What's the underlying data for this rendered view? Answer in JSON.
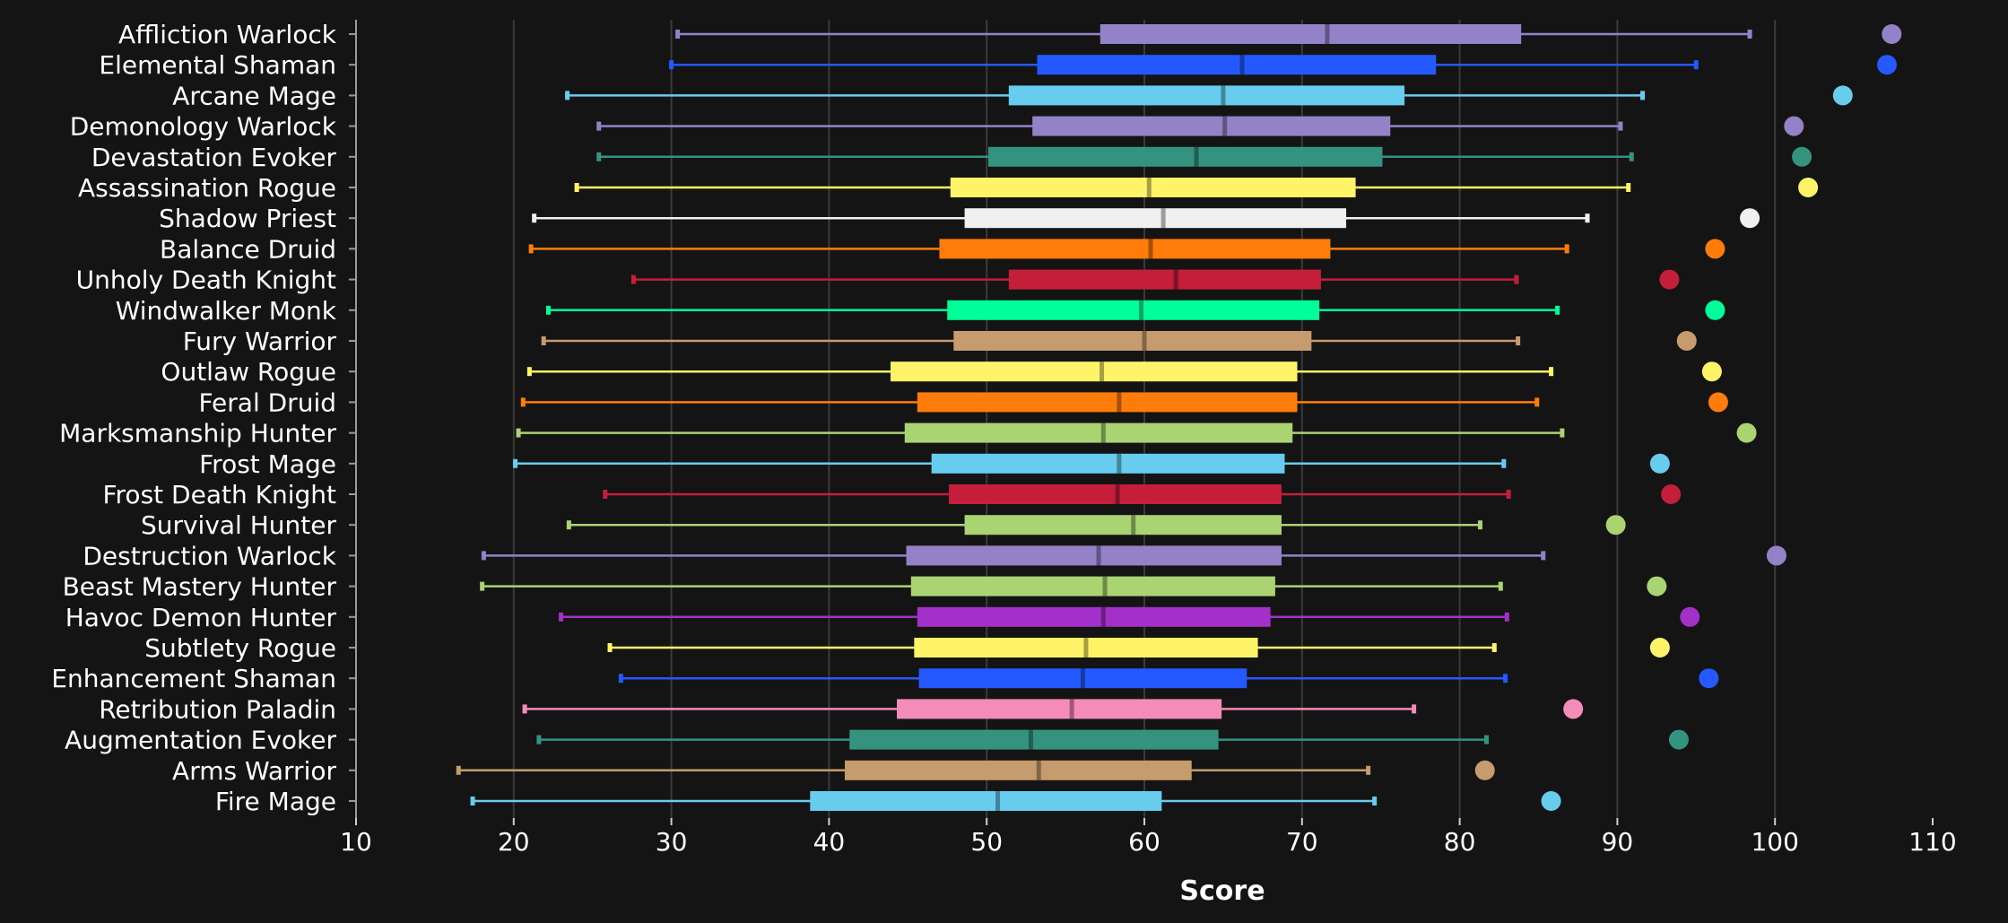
{
  "chart_data": {
    "type": "boxplot",
    "xlabel": "Score",
    "xlim": [
      10,
      110
    ],
    "xticks": [
      10,
      20,
      30,
      40,
      50,
      60,
      70,
      80,
      90,
      100,
      110
    ],
    "xtick_labels": [
      "10",
      "20",
      "30",
      "40",
      "50",
      "60",
      "70",
      "80",
      "90",
      "100",
      "110"
    ],
    "grid": "vertical",
    "background": "#141414",
    "categories": [
      {
        "label": "Affliction Warlock",
        "color": "#9482c9",
        "min": 30.4,
        "q1": 57.2,
        "median": 71.6,
        "q3": 83.9,
        "max": 98.4,
        "point": 107.4
      },
      {
        "label": "Elemental Shaman",
        "color": "#2459ff",
        "min": 30.0,
        "q1": 53.2,
        "median": 66.2,
        "q3": 78.5,
        "max": 95.0,
        "point": 107.1
      },
      {
        "label": "Arcane Mage",
        "color": "#68ccef",
        "min": 23.4,
        "q1": 51.4,
        "median": 65.0,
        "q3": 76.5,
        "max": 91.6,
        "point": 104.3
      },
      {
        "label": "Demonology Warlock",
        "color": "#9482c9",
        "min": 25.4,
        "q1": 52.9,
        "median": 65.1,
        "q3": 75.6,
        "max": 90.2,
        "point": 101.2
      },
      {
        "label": "Devastation Evoker",
        "color": "#33937f",
        "min": 25.4,
        "q1": 50.1,
        "median": 63.3,
        "q3": 75.1,
        "max": 90.9,
        "point": 101.7
      },
      {
        "label": "Assassination Rogue",
        "color": "#fff468",
        "min": 24.0,
        "q1": 47.7,
        "median": 60.3,
        "q3": 73.4,
        "max": 90.7,
        "point": 102.1
      },
      {
        "label": "Shadow Priest",
        "color": "#f0f0f0",
        "min": 21.3,
        "q1": 48.6,
        "median": 61.2,
        "q3": 72.8,
        "max": 88.1,
        "point": 98.4
      },
      {
        "label": "Balance Druid",
        "color": "#ff7c0a",
        "min": 21.1,
        "q1": 47.0,
        "median": 60.4,
        "q3": 71.8,
        "max": 86.8,
        "point": 96.2
      },
      {
        "label": "Unholy Death Knight",
        "color": "#c41e3a",
        "min": 27.6,
        "q1": 51.4,
        "median": 62.0,
        "q3": 71.2,
        "max": 83.6,
        "point": 93.3
      },
      {
        "label": "Windwalker Monk",
        "color": "#00ff98",
        "min": 22.2,
        "q1": 47.5,
        "median": 59.8,
        "q3": 71.1,
        "max": 86.2,
        "point": 96.2
      },
      {
        "label": "Fury Warrior",
        "color": "#c69b6d",
        "min": 21.9,
        "q1": 47.9,
        "median": 60.0,
        "q3": 70.6,
        "max": 83.7,
        "point": 94.4
      },
      {
        "label": "Outlaw Rogue",
        "color": "#fff468",
        "min": 21.0,
        "q1": 43.9,
        "median": 57.3,
        "q3": 69.7,
        "max": 85.8,
        "point": 96.0
      },
      {
        "label": "Feral Druid",
        "color": "#ff7c0a",
        "min": 20.6,
        "q1": 45.6,
        "median": 58.4,
        "q3": 69.7,
        "max": 84.9,
        "point": 96.4
      },
      {
        "label": "Marksmanship Hunter",
        "color": "#aad372",
        "min": 20.3,
        "q1": 44.8,
        "median": 57.4,
        "q3": 69.4,
        "max": 86.5,
        "point": 98.2
      },
      {
        "label": "Frost Mage",
        "color": "#68ccef",
        "min": 20.1,
        "q1": 46.5,
        "median": 58.4,
        "q3": 68.9,
        "max": 82.8,
        "point": 92.7
      },
      {
        "label": "Frost Death Knight",
        "color": "#c41e3a",
        "min": 25.8,
        "q1": 47.6,
        "median": 58.3,
        "q3": 68.7,
        "max": 83.1,
        "point": 93.4
      },
      {
        "label": "Survival Hunter",
        "color": "#aad372",
        "min": 23.5,
        "q1": 48.6,
        "median": 59.3,
        "q3": 68.7,
        "max": 81.3,
        "point": 89.9
      },
      {
        "label": "Destruction Warlock",
        "color": "#9482c9",
        "min": 18.1,
        "q1": 44.9,
        "median": 57.1,
        "q3": 68.7,
        "max": 85.3,
        "point": 100.1
      },
      {
        "label": "Beast Mastery Hunter",
        "color": "#aad372",
        "min": 18.0,
        "q1": 45.2,
        "median": 57.5,
        "q3": 68.3,
        "max": 82.6,
        "point": 92.5
      },
      {
        "label": "Havoc Demon Hunter",
        "color": "#a330c9",
        "min": 23.0,
        "q1": 45.6,
        "median": 57.4,
        "q3": 68.0,
        "max": 83.0,
        "point": 94.6
      },
      {
        "label": "Subtlety Rogue",
        "color": "#fff468",
        "min": 26.1,
        "q1": 45.4,
        "median": 56.3,
        "q3": 67.2,
        "max": 82.2,
        "point": 92.7
      },
      {
        "label": "Enhancement Shaman",
        "color": "#2459ff",
        "min": 26.8,
        "q1": 45.7,
        "median": 56.1,
        "q3": 66.5,
        "max": 82.9,
        "point": 95.8
      },
      {
        "label": "Retribution Paladin",
        "color": "#f48cba",
        "min": 20.7,
        "q1": 44.3,
        "median": 55.4,
        "q3": 64.9,
        "max": 77.1,
        "point": 87.2
      },
      {
        "label": "Augmentation Evoker",
        "color": "#33937f",
        "min": 21.6,
        "q1": 41.3,
        "median": 52.8,
        "q3": 64.7,
        "max": 81.7,
        "point": 93.9
      },
      {
        "label": "Arms Warrior",
        "color": "#c69b6d",
        "min": 16.5,
        "q1": 41.0,
        "median": 53.3,
        "q3": 63.0,
        "max": 74.2,
        "point": 81.6
      },
      {
        "label": "Fire Mage",
        "color": "#68ccef",
        "min": 17.4,
        "q1": 38.8,
        "median": 50.7,
        "q3": 61.1,
        "max": 74.6,
        "point": 85.8
      }
    ]
  }
}
